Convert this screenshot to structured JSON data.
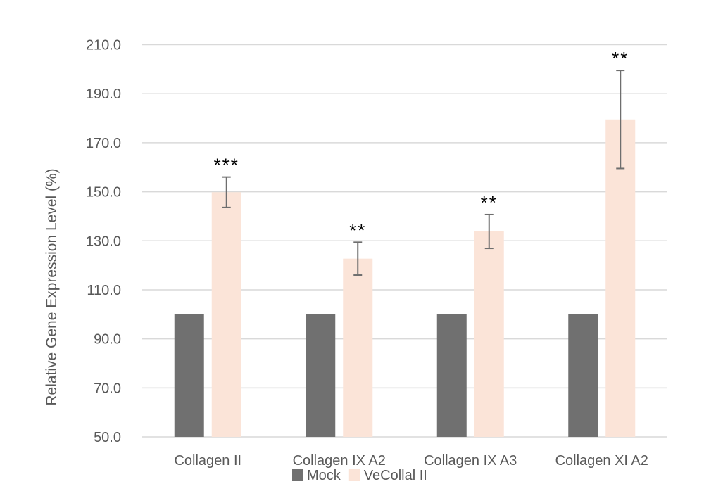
{
  "chart_data": {
    "type": "bar",
    "title": "",
    "xlabel": "",
    "ylabel": "Relative Gene Expression Level (%)",
    "ylim": [
      50,
      210
    ],
    "yticks": [
      "50.0",
      "70.0",
      "90.0",
      "110.0",
      "130.0",
      "150.0",
      "170.0",
      "190.0",
      "210.0"
    ],
    "ytick_values": [
      50,
      70,
      90,
      110,
      130,
      150,
      170,
      190,
      210
    ],
    "grid": true,
    "legend_position": "bottom",
    "categories": [
      "Collagen II",
      "Collagen IX A2",
      "Collagen IX A3",
      "Collagen XI A2"
    ],
    "series": [
      {
        "name": "Mock",
        "color": "#707070",
        "values": [
          100,
          100,
          100,
          100
        ]
      },
      {
        "name": "VeCollal II",
        "color": "#fbe4d8",
        "values": [
          149.8,
          122.7,
          133.8,
          179.5
        ],
        "errors": [
          6.2,
          6.7,
          6.9,
          20.0
        ]
      }
    ],
    "annotations": [
      "***",
      "**",
      "**",
      "**"
    ]
  }
}
